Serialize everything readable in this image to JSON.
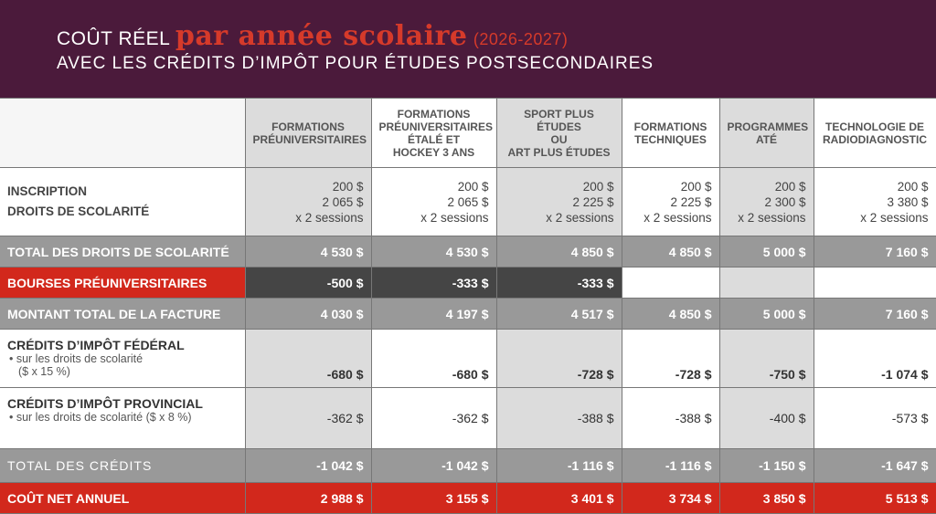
{
  "title": {
    "prefix": "COÛT RÉEL",
    "highlight": "par année scolaire",
    "year": "(2026-2027)",
    "subtitle": "AVEC LES CRÉDITS D’IMPÔT POUR ÉTUDES POSTSECONDAIRES"
  },
  "columns": [
    [
      "FORMATIONS",
      "PRÉUNIVERSITAIRES"
    ],
    [
      "FORMATIONS",
      "PRÉUNIVERSITAIRES",
      "ÉTALÉ ET",
      "HOCKEY 3 ANS"
    ],
    [
      "SPORT PLUS ÉTUDES",
      "OU",
      "ART PLUS ÉTUDES"
    ],
    [
      "FORMATIONS",
      "TECHNIQUES"
    ],
    [
      "PROGRAMMES",
      "ATÉ"
    ],
    [
      "TECHNOLOGIE DE",
      "RADIODIAGNOSTIC"
    ]
  ],
  "rows": {
    "inscription": {
      "label1": "INSCRIPTION",
      "label2": "DROITS DE SCOLARITÉ",
      "values": [
        [
          "200 $",
          "2 065 $",
          "x 2 sessions"
        ],
        [
          "200 $",
          "2 065 $",
          "x 2 sessions"
        ],
        [
          "200 $",
          "2 225 $",
          "x 2 sessions"
        ],
        [
          "200 $",
          "2 225 $",
          "x 2 sessions"
        ],
        [
          "200 $",
          "2 300 $",
          "x 2 sessions"
        ],
        [
          "200 $",
          "3 380 $",
          "x 2 sessions"
        ]
      ]
    },
    "total_droits": {
      "label": "TOTAL DES DROITS DE SCOLARITÉ",
      "values": [
        "4 530 $",
        "4 530 $",
        "4 850 $",
        "4 850 $",
        "5 000 $",
        "7 160 $"
      ]
    },
    "bourses": {
      "label": "BOURSES PRÉUNIVERSITAIRES",
      "values": [
        "-500 $",
        "-333 $",
        "-333 $",
        "",
        "",
        ""
      ]
    },
    "montant": {
      "label": "MONTANT TOTAL DE LA FACTURE",
      "values": [
        "4 030 $",
        "4 197 $",
        "4 517 $",
        "4 850 $",
        "5 000 $",
        "7 160 $"
      ]
    },
    "federal": {
      "label": "CRÉDITS D’IMPÔT FÉDÉRAL",
      "note1": "• sur les droits de scolarité",
      "note2": "($ x 15 %)",
      "values": [
        "-680 $",
        "-680 $",
        "-728 $",
        "-728 $",
        "-750 $",
        "-1 074 $"
      ]
    },
    "provincial": {
      "label": "CRÉDITS D’IMPÔT PROVINCIAL",
      "note1": "• sur les droits de scolarité ($ x 8 %)",
      "values": [
        "-362 $",
        "-362 $",
        "-388 $",
        "-388 $",
        "-400 $",
        "-573 $"
      ]
    },
    "total_credits": {
      "label": "TOTAL DES CRÉDITS",
      "values": [
        "-1 042 $",
        "-1 042 $",
        "-1 116 $",
        "-1 116 $",
        "-1 150 $",
        "-1 647 $"
      ]
    },
    "net": {
      "label": "COÛT NET ANNUEL",
      "values": [
        "2 988 $",
        "3 155 $",
        "3 401 $",
        "3 734 $",
        "3 850 $",
        "5 513 $"
      ]
    }
  },
  "colors": {
    "banner": "#4b1a3b",
    "accent": "#d2281c",
    "gray": "#999999",
    "dark": "#454545"
  }
}
